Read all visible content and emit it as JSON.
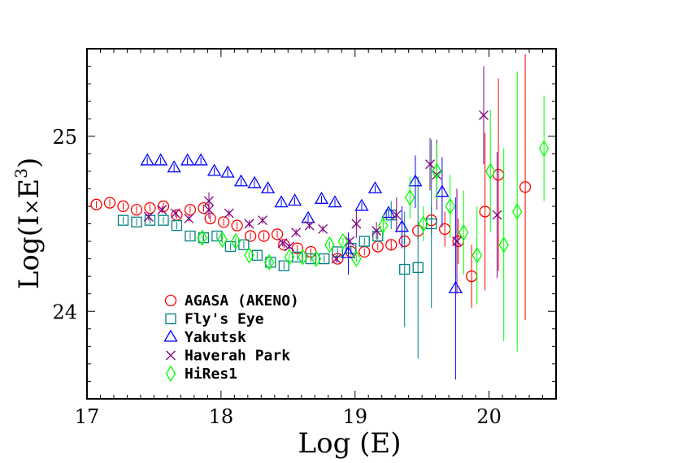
{
  "chart_data": {
    "type": "scatter",
    "xlabel": "Log (E)",
    "ylabel_parts": {
      "pre": "Log(I",
      "times": "×",
      "E": "E",
      "exp": "3",
      "post": ")"
    },
    "xlim": [
      17.0,
      20.5
    ],
    "ylim": [
      23.5,
      25.5
    ],
    "x_ticks": [
      "17",
      "18",
      "19",
      "20"
    ],
    "y_ticks": [
      "24",
      "25"
    ],
    "legend_position": "lower-left",
    "series": [
      {
        "name": "AGASA (AKENO)",
        "marker": "circle",
        "color": "#ff0000",
        "points": [
          {
            "x": 17.07,
            "y": 24.61
          },
          {
            "x": 17.17,
            "y": 24.62
          },
          {
            "x": 17.27,
            "y": 24.6
          },
          {
            "x": 17.37,
            "y": 24.58
          },
          {
            "x": 17.47,
            "y": 24.59
          },
          {
            "x": 17.57,
            "y": 24.6
          },
          {
            "x": 17.67,
            "y": 24.55
          },
          {
            "x": 17.77,
            "y": 24.58
          },
          {
            "x": 17.87,
            "y": 24.59
          },
          {
            "x": 17.92,
            "y": 24.53
          },
          {
            "x": 18.02,
            "y": 24.51
          },
          {
            "x": 18.12,
            "y": 24.49
          },
          {
            "x": 18.22,
            "y": 24.43
          },
          {
            "x": 18.32,
            "y": 24.43
          },
          {
            "x": 18.42,
            "y": 24.44
          },
          {
            "x": 18.47,
            "y": 24.38
          },
          {
            "x": 18.57,
            "y": 24.36
          },
          {
            "x": 18.67,
            "y": 24.34
          },
          {
            "x": 18.87,
            "y": 24.3
          },
          {
            "x": 18.97,
            "y": 24.34
          },
          {
            "x": 19.07,
            "y": 24.34
          },
          {
            "x": 19.17,
            "y": 24.37
          },
          {
            "x": 19.27,
            "y": 24.38,
            "e": 0.03
          },
          {
            "x": 19.37,
            "y": 24.4,
            "e": 0.04
          },
          {
            "x": 19.47,
            "y": 24.46,
            "e": 0.05
          },
          {
            "x": 19.57,
            "y": 24.52,
            "e": 0.08
          },
          {
            "x": 19.67,
            "y": 24.47,
            "e": 0.1
          },
          {
            "x": 19.77,
            "y": 24.4,
            "e": 0.13
          },
          {
            "x": 19.87,
            "y": 24.2,
            "e": 0.18
          },
          {
            "x": 19.97,
            "y": 24.57,
            "e": 0.45
          },
          {
            "x": 20.07,
            "y": 24.78,
            "e": 0.55
          },
          {
            "x": 20.27,
            "y": 24.71,
            "e": 0.76
          }
        ]
      },
      {
        "name": "Fly's Eye",
        "marker": "square",
        "color": "#008080",
        "points": [
          {
            "x": 17.27,
            "y": 24.52
          },
          {
            "x": 17.37,
            "y": 24.51
          },
          {
            "x": 17.47,
            "y": 24.52
          },
          {
            "x": 17.57,
            "y": 24.52
          },
          {
            "x": 17.67,
            "y": 24.49
          },
          {
            "x": 17.77,
            "y": 24.43
          },
          {
            "x": 17.87,
            "y": 24.42
          },
          {
            "x": 17.97,
            "y": 24.43
          },
          {
            "x": 18.07,
            "y": 24.37
          },
          {
            "x": 18.17,
            "y": 24.38
          },
          {
            "x": 18.27,
            "y": 24.32
          },
          {
            "x": 18.37,
            "y": 24.28
          },
          {
            "x": 18.47,
            "y": 24.26
          },
          {
            "x": 18.57,
            "y": 24.31
          },
          {
            "x": 18.67,
            "y": 24.3
          },
          {
            "x": 18.77,
            "y": 24.3
          },
          {
            "x": 18.87,
            "y": 24.34
          },
          {
            "x": 18.97,
            "y": 24.36
          },
          {
            "x": 19.07,
            "y": 24.4
          },
          {
            "x": 19.17,
            "y": 24.43
          },
          {
            "x": 19.27,
            "y": 24.55,
            "e": 0.08
          },
          {
            "x": 19.37,
            "y": 24.24,
            "e": 0.33
          },
          {
            "x": 19.47,
            "y": 24.25,
            "e": 0.52
          },
          {
            "x": 19.57,
            "y": 24.5,
            "e": 0.48
          }
        ]
      },
      {
        "name": "Yakutsk",
        "marker": "triangle",
        "color": "#0000ff",
        "points": [
          {
            "x": 17.45,
            "y": 24.86
          },
          {
            "x": 17.55,
            "y": 24.86
          },
          {
            "x": 17.65,
            "y": 24.82
          },
          {
            "x": 17.75,
            "y": 24.86
          },
          {
            "x": 17.85,
            "y": 24.86
          },
          {
            "x": 17.95,
            "y": 24.8
          },
          {
            "x": 18.05,
            "y": 24.79
          },
          {
            "x": 18.15,
            "y": 24.74
          },
          {
            "x": 18.25,
            "y": 24.73
          },
          {
            "x": 18.35,
            "y": 24.7
          },
          {
            "x": 18.45,
            "y": 24.62
          },
          {
            "x": 18.55,
            "y": 24.63
          },
          {
            "x": 18.65,
            "y": 24.53
          },
          {
            "x": 18.75,
            "y": 24.64
          },
          {
            "x": 18.85,
            "y": 24.62
          },
          {
            "x": 18.95,
            "y": 24.33,
            "e": 0.12
          },
          {
            "x": 19.05,
            "y": 24.6
          },
          {
            "x": 19.15,
            "y": 24.7
          },
          {
            "x": 19.25,
            "y": 24.56
          },
          {
            "x": 19.35,
            "y": 24.48,
            "e": 0.12
          },
          {
            "x": 19.45,
            "y": 24.74,
            "e": 0.15
          },
          {
            "x": 19.65,
            "y": 24.68,
            "e": 0.2
          },
          {
            "x": 19.75,
            "y": 24.13,
            "e": 0.52
          }
        ]
      },
      {
        "name": "Haverah Park",
        "marker": "x",
        "color": "#800080",
        "points": [
          {
            "x": 17.46,
            "y": 24.54
          },
          {
            "x": 17.56,
            "y": 24.58
          },
          {
            "x": 17.66,
            "y": 24.56
          },
          {
            "x": 17.76,
            "y": 24.53
          },
          {
            "x": 17.91,
            "y": 24.63,
            "e": 0.05
          },
          {
            "x": 17.91,
            "y": 24.58,
            "e": 0.05
          },
          {
            "x": 18.06,
            "y": 24.56
          },
          {
            "x": 18.21,
            "y": 24.5
          },
          {
            "x": 18.31,
            "y": 24.52
          },
          {
            "x": 18.46,
            "y": 24.39
          },
          {
            "x": 18.51,
            "y": 24.37
          },
          {
            "x": 18.56,
            "y": 24.45
          },
          {
            "x": 18.66,
            "y": 24.49
          },
          {
            "x": 18.76,
            "y": 24.47
          },
          {
            "x": 18.86,
            "y": 24.3
          },
          {
            "x": 18.96,
            "y": 24.4
          },
          {
            "x": 19.01,
            "y": 24.5,
            "e": 0.08
          },
          {
            "x": 19.16,
            "y": 24.46,
            "e": 0.05
          },
          {
            "x": 19.31,
            "y": 24.55,
            "e": 0.1
          },
          {
            "x": 19.56,
            "y": 24.84,
            "e": 0.15
          },
          {
            "x": 19.61,
            "y": 24.78,
            "e": 0.2
          },
          {
            "x": 19.76,
            "y": 24.4,
            "e": 0.3
          },
          {
            "x": 19.96,
            "y": 25.12,
            "e": 0.28
          },
          {
            "x": 20.06,
            "y": 24.55,
            "e": 0.36
          }
        ]
      },
      {
        "name": "HiRes1",
        "marker": "diamond",
        "color": "#00ff00",
        "points": [
          {
            "x": 17.86,
            "y": 24.42
          },
          {
            "x": 18.01,
            "y": 24.41
          },
          {
            "x": 18.11,
            "y": 24.4
          },
          {
            "x": 18.21,
            "y": 24.32
          },
          {
            "x": 18.36,
            "y": 24.28
          },
          {
            "x": 18.51,
            "y": 24.31
          },
          {
            "x": 18.61,
            "y": 24.31
          },
          {
            "x": 18.71,
            "y": 24.3
          },
          {
            "x": 18.81,
            "y": 24.38
          },
          {
            "x": 18.91,
            "y": 24.4
          },
          {
            "x": 19.01,
            "y": 24.3
          },
          {
            "x": 19.21,
            "y": 24.49,
            "e": 0.06
          },
          {
            "x": 19.41,
            "y": 24.65,
            "e": 0.12
          },
          {
            "x": 19.51,
            "y": 24.5,
            "e": 0.1
          },
          {
            "x": 19.61,
            "y": 24.8,
            "e": 0.16
          },
          {
            "x": 19.71,
            "y": 24.6,
            "e": 0.18
          },
          {
            "x": 19.81,
            "y": 24.45,
            "e": 0.24
          },
          {
            "x": 19.91,
            "y": 24.32,
            "e": 0.28
          },
          {
            "x": 20.01,
            "y": 24.8,
            "e": 0.35
          },
          {
            "x": 20.11,
            "y": 24.38,
            "e": 0.55
          },
          {
            "x": 20.21,
            "y": 24.57,
            "e": 0.8
          },
          {
            "x": 20.41,
            "y": 24.93,
            "e": 0.3
          }
        ]
      }
    ]
  }
}
